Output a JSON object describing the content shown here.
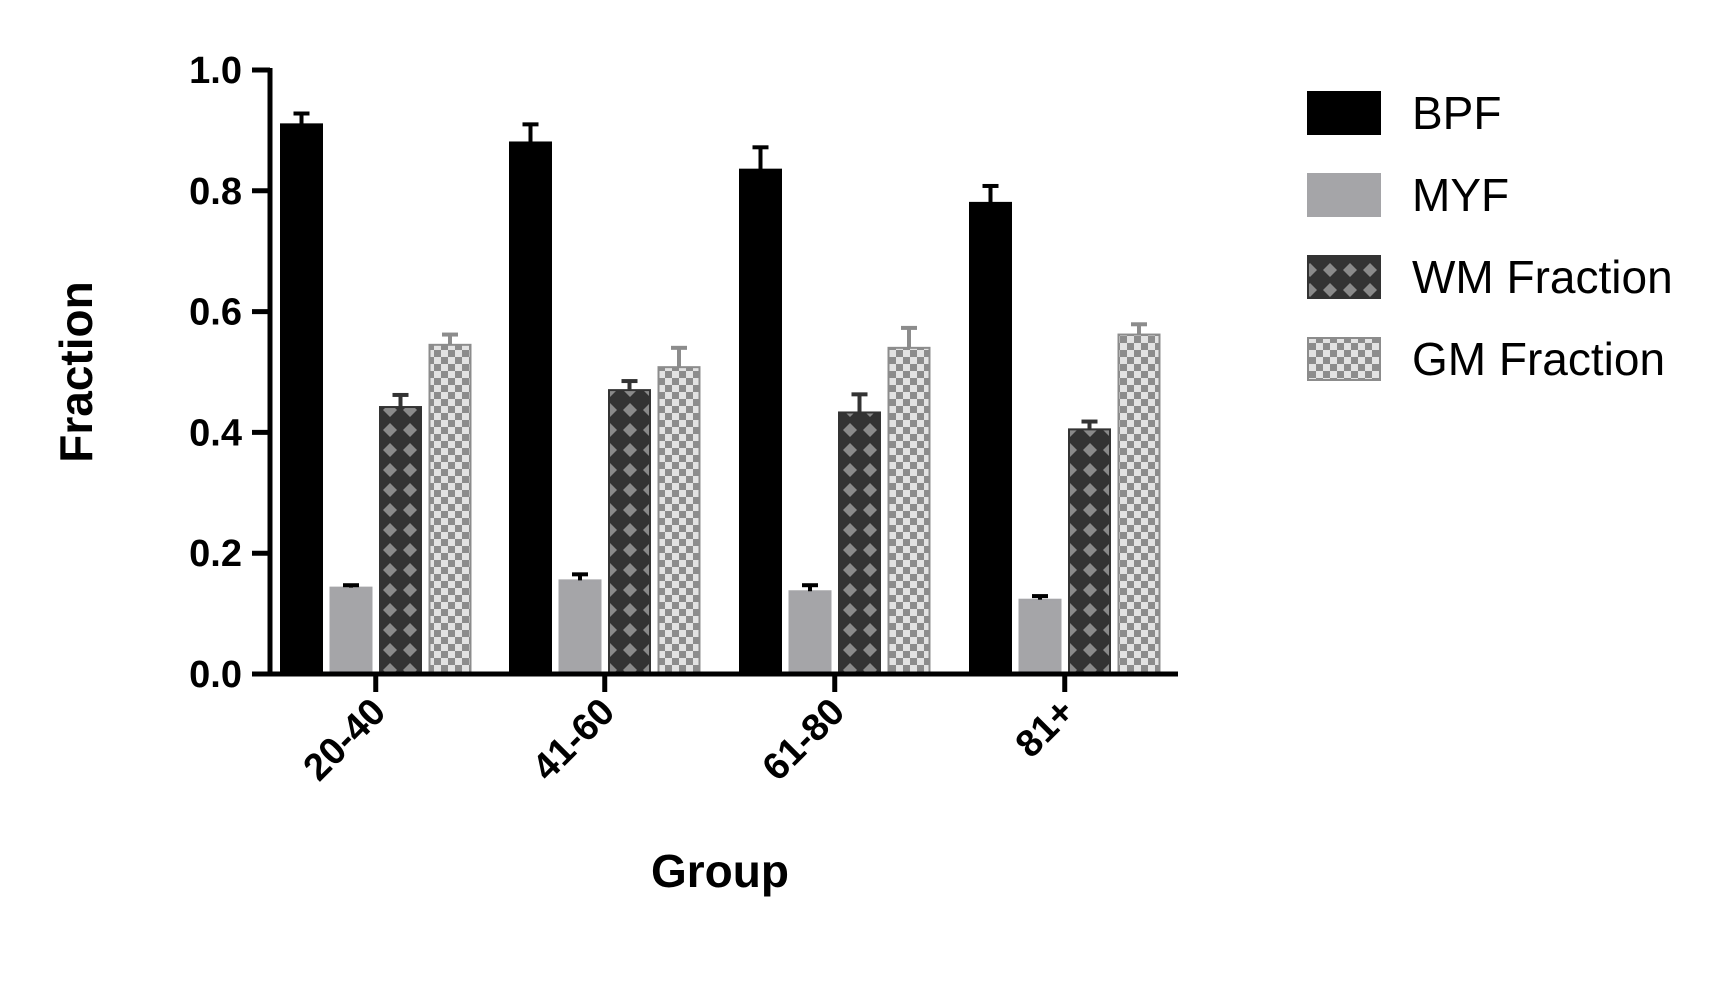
{
  "chart_data": {
    "type": "bar",
    "xlabel": "Group",
    "ylabel": "Fraction",
    "ylim": [
      0,
      1.0
    ],
    "yticks": [
      0.0,
      0.2,
      0.4,
      0.6,
      0.8,
      1.0
    ],
    "ytick_labels": [
      "0.0",
      "0.2",
      "0.4",
      "0.6",
      "0.8",
      "1.0"
    ],
    "categories": [
      "20-40",
      "41-60",
      "61-80",
      "81+"
    ],
    "series": [
      {
        "name": "BPF",
        "values": [
          0.91,
          0.88,
          0.835,
          0.78
        ],
        "errors": [
          0.018,
          0.03,
          0.037,
          0.028
        ],
        "color": "#000000",
        "pattern": "solid-black"
      },
      {
        "name": "MYF",
        "values": [
          0.143,
          0.155,
          0.137,
          0.123
        ],
        "errors": [
          0.004,
          0.01,
          0.01,
          0.006
        ],
        "color": "#a5a5a8",
        "pattern": "solid-gray"
      },
      {
        "name": "WM Fraction",
        "values": [
          0.442,
          0.47,
          0.433,
          0.405
        ],
        "errors": [
          0.02,
          0.015,
          0.03,
          0.013
        ],
        "color": "#3a3a3a",
        "pattern": "diamond-dark"
      },
      {
        "name": "GM Fraction",
        "values": [
          0.545,
          0.508,
          0.54,
          0.562
        ],
        "errors": [
          0.017,
          0.032,
          0.033,
          0.017
        ],
        "color": "#8c8c8c",
        "pattern": "checker-light"
      }
    ],
    "grid": false,
    "legend_position": "top-right"
  }
}
